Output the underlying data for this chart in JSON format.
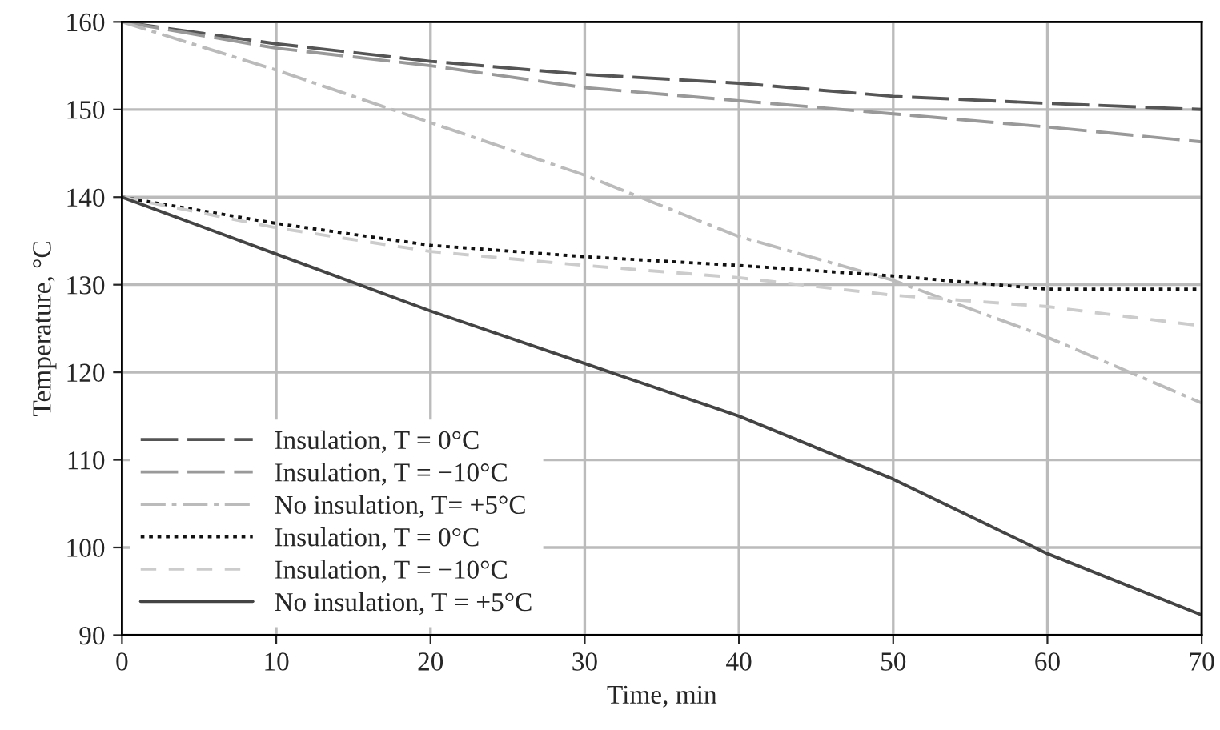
{
  "chart_data": {
    "type": "line",
    "xlabel": "Time, min",
    "ylabel": "Temperature, °C",
    "x": [
      0,
      10,
      20,
      30,
      40,
      50,
      60,
      70
    ],
    "xlim": [
      0,
      70
    ],
    "xticks": [
      0,
      10,
      20,
      30,
      40,
      50,
      60,
      70
    ],
    "ylim": [
      90,
      160
    ],
    "yticks": [
      90,
      100,
      110,
      120,
      130,
      140,
      150,
      160
    ],
    "grid": true,
    "legend": "bottom left",
    "marker": "none",
    "series": [
      {
        "name": "Insulation, T = 0°C",
        "color": "#555555",
        "line_style": "longdash",
        "values": [
          160,
          157.5,
          155.5,
          154,
          153,
          151.5,
          150.7,
          150
        ]
      },
      {
        "name": "Insulation, T = −10°C",
        "color": "#999999",
        "line_style": "longdash",
        "values": [
          160,
          157,
          155,
          152.5,
          151,
          149.5,
          148,
          146.3
        ]
      },
      {
        "name": "No insulation, T= +5°C",
        "color": "#bbbbbb",
        "line_style": "dashdot",
        "values": [
          160,
          154.5,
          148.5,
          142.5,
          135.5,
          130.5,
          124,
          116.5
        ]
      },
      {
        "name": "Insulation, T = 0°C",
        "color": "#111111",
        "line_style": "dotted",
        "values": [
          140,
          137,
          134.5,
          133.2,
          132.2,
          131,
          129.5,
          129.5
        ]
      },
      {
        "name": "Insulation, T = −10°C",
        "color": "#cccccc",
        "line_style": "dashed",
        "values": [
          140,
          136.5,
          133.8,
          132.2,
          130.8,
          128.8,
          127.5,
          125.3
        ]
      },
      {
        "name": "No insulation, T = +5°C",
        "color": "#444444",
        "line_style": "solid",
        "values": [
          140,
          133.5,
          127,
          121,
          115,
          107.8,
          99.3,
          92.3
        ]
      }
    ]
  }
}
